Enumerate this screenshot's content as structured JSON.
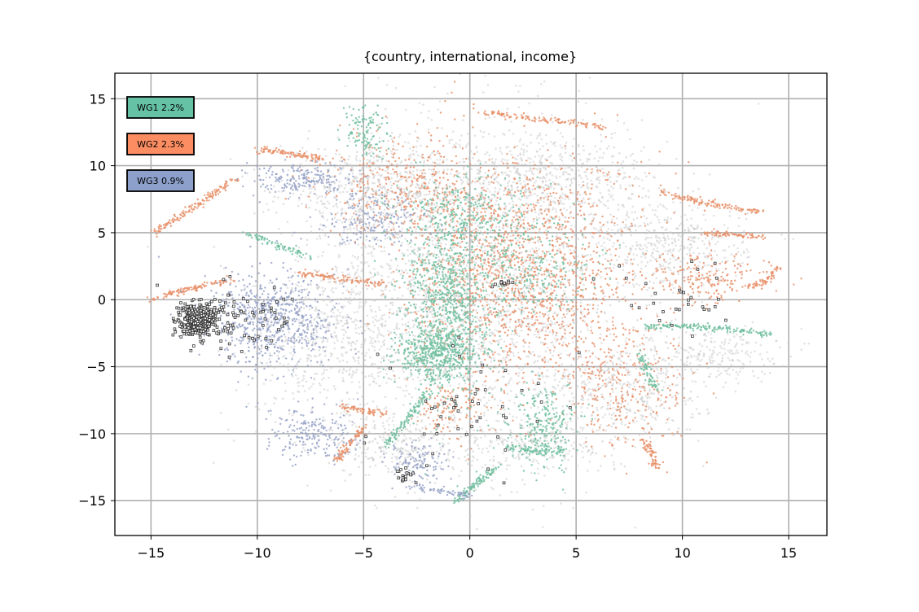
{
  "chart_data": {
    "type": "scatter",
    "title": "{country, international, income}",
    "xlabel": "",
    "ylabel": "",
    "xlim": [
      -16.7,
      16.8
    ],
    "ylim": [
      -17.6,
      16.9
    ],
    "xticks": [
      -15,
      -10,
      -5,
      0,
      5,
      10,
      15
    ],
    "xtick_labels": [
      "−15",
      "−10",
      "−5",
      "0",
      "5",
      "10",
      "15"
    ],
    "yticks": [
      -15,
      -10,
      -5,
      0,
      5,
      10,
      15
    ],
    "ytick_labels": [
      "−15",
      "−10",
      "−5",
      "0",
      "5",
      "10",
      "15"
    ],
    "grid": true,
    "legend_placement": "top-left",
    "legend": [
      {
        "label": "WG1 2.2%",
        "color": "#66c2a5"
      },
      {
        "label": "WG2 2.3%",
        "color": "#fc8d62"
      },
      {
        "label": "WG3 0.9%",
        "color": "#8da0cb"
      }
    ],
    "series": [
      {
        "color": "#c8c8c8",
        "role": "background",
        "regions": [
          {
            "cx": 0.0,
            "cy": 1.0,
            "rx": 7.5,
            "ry": 12.5,
            "n": 2600
          },
          {
            "cx": -4.5,
            "cy": 8.0,
            "rx": 4.5,
            "ry": 3.0,
            "n": 500
          },
          {
            "cx": 4.0,
            "cy": 9.0,
            "rx": 5.0,
            "ry": 3.5,
            "n": 500
          },
          {
            "cx": 9.5,
            "cy": 4.0,
            "rx": 3.5,
            "ry": 3.0,
            "n": 380
          },
          {
            "cx": -6.5,
            "cy": -3.0,
            "rx": 4.0,
            "ry": 5.5,
            "n": 480
          },
          {
            "cx": 7.0,
            "cy": -7.0,
            "rx": 4.0,
            "ry": 4.0,
            "n": 420
          },
          {
            "cx": -3.5,
            "cy": -11.0,
            "rx": 3.0,
            "ry": 2.2,
            "n": 220
          },
          {
            "cx": 11.5,
            "cy": -4.0,
            "rx": 3.0,
            "ry": 2.0,
            "n": 220
          },
          {
            "cx": 2.5,
            "cy": -11.0,
            "rx": 4.0,
            "ry": 2.0,
            "n": 220
          }
        ]
      },
      {
        "name": "WG2",
        "color": "#e8906a",
        "regions": [
          {
            "cx": 2.5,
            "cy": 2.0,
            "rx": 5.5,
            "ry": 8.5,
            "n": 1500
          },
          {
            "cx": -3.0,
            "cy": 8.5,
            "rx": 4.0,
            "ry": 4.0,
            "n": 350
          },
          {
            "cx": 7.5,
            "cy": -6.5,
            "rx": 3.0,
            "ry": 4.5,
            "n": 260
          },
          {
            "cx": 11.0,
            "cy": 1.5,
            "rx": 3.0,
            "ry": 2.0,
            "n": 200
          },
          {
            "cx": -1.0,
            "cy": -8.0,
            "rx": 1.5,
            "ry": 2.0,
            "n": 120
          }
        ],
        "curves": [
          {
            "points": [
              [
                -14.8,
                5.0
              ],
              [
                -13.0,
                7.0
              ],
              [
                -11.0,
                9.0
              ]
            ],
            "n": 150
          },
          {
            "points": [
              [
                -10.0,
                11.2
              ],
              [
                -8.5,
                11.0
              ],
              [
                -7.0,
                10.5
              ]
            ],
            "n": 110
          },
          {
            "points": [
              [
                -15.0,
                0.0
              ],
              [
                -13.0,
                1.0
              ],
              [
                -11.0,
                1.5
              ]
            ],
            "n": 110
          },
          {
            "points": [
              [
                -8.0,
                2.0
              ],
              [
                -6.0,
                1.5
              ],
              [
                -4.0,
                1.2
              ]
            ],
            "n": 110
          },
          {
            "points": [
              [
                0.5,
                14.0
              ],
              [
                3.5,
                13.5
              ],
              [
                6.5,
                12.8
              ]
            ],
            "n": 120
          },
          {
            "points": [
              [
                9.0,
                8.0
              ],
              [
                11.5,
                7.0
              ],
              [
                13.8,
                6.5
              ]
            ],
            "n": 130
          },
          {
            "points": [
              [
                11.0,
                5.0
              ],
              [
                12.5,
                4.8
              ],
              [
                13.8,
                4.7
              ]
            ],
            "n": 80
          },
          {
            "points": [
              [
                -6.0,
                -8.0
              ],
              [
                -5.0,
                -8.3
              ],
              [
                -4.0,
                -8.5
              ]
            ],
            "n": 70
          },
          {
            "points": [
              [
                -6.3,
                -12.0
              ],
              [
                -5.5,
                -10.5
              ],
              [
                -5.0,
                -9.5
              ]
            ],
            "n": 90
          },
          {
            "points": [
              [
                8.2,
                -10.5
              ],
              [
                8.5,
                -11.5
              ],
              [
                8.8,
                -12.5
              ]
            ],
            "n": 70
          },
          {
            "points": [
              [
                13.0,
                1.0
              ],
              [
                14.0,
                1.0
              ],
              [
                14.5,
                2.5
              ]
            ],
            "n": 60
          }
        ]
      },
      {
        "name": "WG1",
        "color": "#71bfa0",
        "regions": [
          {
            "cx": -1.0,
            "cy": 0.0,
            "rx": 2.0,
            "ry": 7.0,
            "n": 800
          },
          {
            "cx": -1.5,
            "cy": -4.0,
            "rx": 2.0,
            "ry": 2.0,
            "n": 450
          },
          {
            "cx": -5.0,
            "cy": 12.5,
            "rx": 1.0,
            "ry": 1.8,
            "n": 120
          },
          {
            "cx": 3.5,
            "cy": -9.5,
            "rx": 1.5,
            "ry": 3.0,
            "n": 260
          },
          {
            "cx": 0.0,
            "cy": 6.0,
            "rx": 3.5,
            "ry": 3.0,
            "n": 280
          },
          {
            "cx": 3.0,
            "cy": 2.0,
            "rx": 3.0,
            "ry": 3.0,
            "n": 200
          }
        ],
        "curves": [
          {
            "points": [
              [
                8.0,
                -2.0
              ],
              [
                11.0,
                -1.8
              ],
              [
                14.2,
                -2.6
              ]
            ],
            "n": 170
          },
          {
            "points": [
              [
                -4.0,
                -11.0
              ],
              [
                -3.0,
                -9.0
              ],
              [
                -2.0,
                -7.0
              ]
            ],
            "n": 110
          },
          {
            "points": [
              [
                -0.7,
                -15.0
              ],
              [
                0.3,
                -13.8
              ],
              [
                1.3,
                -12.5
              ]
            ],
            "n": 110
          },
          {
            "points": [
              [
                -10.5,
                5.0
              ],
              [
                -9.0,
                4.0
              ],
              [
                -7.5,
                3.2
              ]
            ],
            "n": 80
          },
          {
            "points": [
              [
                8.0,
                -4.0
              ],
              [
                8.4,
                -5.5
              ],
              [
                8.8,
                -6.8
              ]
            ],
            "n": 70
          },
          {
            "points": [
              [
                1.8,
                -11.0
              ],
              [
                3.0,
                -11.5
              ],
              [
                4.5,
                -11.2
              ]
            ],
            "n": 70
          }
        ]
      },
      {
        "name": "WG3",
        "color": "#98a3c8",
        "regions": [
          {
            "cx": -9.5,
            "cy": -1.5,
            "rx": 3.0,
            "ry": 3.5,
            "n": 700
          },
          {
            "cx": -8.0,
            "cy": 9.0,
            "rx": 2.5,
            "ry": 1.2,
            "n": 200
          },
          {
            "cx": -4.5,
            "cy": 6.0,
            "rx": 2.5,
            "ry": 2.5,
            "n": 180
          },
          {
            "cx": -7.5,
            "cy": -10.0,
            "rx": 2.0,
            "ry": 2.0,
            "n": 200
          },
          {
            "cx": -2.5,
            "cy": -12.0,
            "rx": 1.5,
            "ry": 1.5,
            "n": 120
          }
        ],
        "curves": [
          {
            "points": [
              [
                -3.0,
                -13.8
              ],
              [
                -1.5,
                -14.3
              ],
              [
                0.0,
                -14.6
              ]
            ],
            "n": 60
          }
        ]
      },
      {
        "name": "outline",
        "color": "#333333",
        "marker": "square",
        "regions": [
          {
            "cx": -12.8,
            "cy": -1.5,
            "rx": 0.8,
            "ry": 1.1,
            "n": 380
          },
          {
            "cx": -11.0,
            "cy": -1.5,
            "rx": 2.5,
            "ry": 3.0,
            "n": 90
          },
          {
            "cx": -3.0,
            "cy": -13.0,
            "rx": 0.6,
            "ry": 0.8,
            "n": 15
          },
          {
            "cx": 1.5,
            "cy": 1.2,
            "rx": 0.5,
            "ry": 0.3,
            "n": 10
          },
          {
            "cx": 9.5,
            "cy": 0.0,
            "rx": 3.5,
            "ry": 3.0,
            "n": 30
          },
          {
            "cx": 0.0,
            "cy": -8.0,
            "rx": 5.0,
            "ry": 5.0,
            "n": 50
          }
        ],
        "curves": []
      }
    ]
  }
}
